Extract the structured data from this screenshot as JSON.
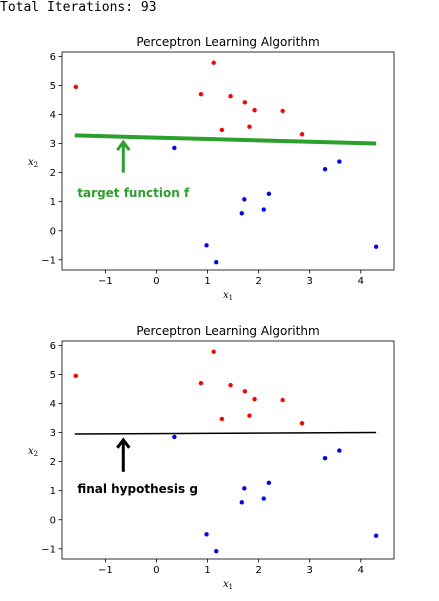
{
  "header": {
    "iterations_text": "Total Iterations: 93"
  },
  "colors": {
    "positive": "#ff0000",
    "negative": "#0000ff",
    "target_line": "#2ca02c",
    "hypothesis_line": "#000000",
    "target_annotation": "#2ca02c",
    "hypothesis_annotation": "#000000"
  },
  "chart_data": [
    {
      "type": "scatter",
      "title": "Perceptron Learning Algorithm",
      "xlabel_base": "x",
      "xlabel_sub": "1",
      "ylabel_base": "x",
      "ylabel_sub": "2",
      "xlim": [
        -1.85,
        4.65
      ],
      "ylim": [
        -1.35,
        6.15
      ],
      "xticks": [
        -1,
        0,
        1,
        2,
        3,
        4
      ],
      "yticks": [
        -1,
        0,
        1,
        2,
        3,
        4,
        5,
        6
      ],
      "grid": false,
      "line": {
        "x": [
          -1.6,
          4.3
        ],
        "y": [
          3.28,
          3.0
        ],
        "color": "#2ca02c",
        "width": 4
      },
      "annotation": {
        "text": "target function f",
        "color": "#2ca02c",
        "arrow_x": -0.65,
        "arrow_tail_y": 2.0,
        "arrow_head_y": 3.05,
        "text_x": -1.55,
        "text_y": 1.3
      },
      "positive_points": [
        [
          -1.58,
          4.95
        ],
        [
          1.12,
          5.78
        ],
        [
          0.87,
          4.7
        ],
        [
          1.45,
          4.63
        ],
        [
          1.73,
          4.42
        ],
        [
          1.92,
          4.15
        ],
        [
          2.47,
          4.12
        ],
        [
          1.82,
          3.58
        ],
        [
          1.28,
          3.47
        ],
        [
          2.85,
          3.32
        ]
      ],
      "negative_points": [
        [
          0.35,
          2.85
        ],
        [
          3.58,
          2.38
        ],
        [
          3.3,
          2.12
        ],
        [
          2.2,
          1.27
        ],
        [
          1.72,
          1.08
        ],
        [
          2.1,
          0.73
        ],
        [
          1.67,
          0.6
        ],
        [
          4.3,
          -0.55
        ],
        [
          0.98,
          -0.5
        ],
        [
          1.17,
          -1.08
        ]
      ]
    },
    {
      "type": "scatter",
      "title": "Perceptron Learning Algorithm",
      "xlabel_base": "x",
      "xlabel_sub": "1",
      "ylabel_base": "x",
      "ylabel_sub": "2",
      "xlim": [
        -1.85,
        4.65
      ],
      "ylim": [
        -1.35,
        6.15
      ],
      "xticks": [
        -1,
        0,
        1,
        2,
        3,
        4
      ],
      "yticks": [
        -1,
        0,
        1,
        2,
        3,
        4,
        5,
        6
      ],
      "grid": false,
      "line": {
        "x": [
          -1.6,
          4.3
        ],
        "y": [
          2.95,
          3.0
        ],
        "color": "#000000",
        "width": 1.5
      },
      "annotation": {
        "text": "final hypothesis g",
        "color": "#000000",
        "arrow_x": -0.65,
        "arrow_tail_y": 1.65,
        "arrow_head_y": 2.75,
        "text_x": -1.55,
        "text_y": 1.05
      },
      "positive_points": [
        [
          -1.58,
          4.95
        ],
        [
          1.12,
          5.78
        ],
        [
          0.87,
          4.7
        ],
        [
          1.45,
          4.63
        ],
        [
          1.73,
          4.42
        ],
        [
          1.92,
          4.15
        ],
        [
          2.47,
          4.12
        ],
        [
          1.82,
          3.58
        ],
        [
          1.28,
          3.47
        ],
        [
          2.85,
          3.32
        ]
      ],
      "negative_points": [
        [
          0.35,
          2.85
        ],
        [
          3.58,
          2.38
        ],
        [
          3.3,
          2.12
        ],
        [
          2.2,
          1.27
        ],
        [
          1.72,
          1.08
        ],
        [
          2.1,
          0.73
        ],
        [
          1.67,
          0.6
        ],
        [
          4.3,
          -0.55
        ],
        [
          0.98,
          -0.5
        ],
        [
          1.17,
          -1.08
        ]
      ]
    }
  ]
}
